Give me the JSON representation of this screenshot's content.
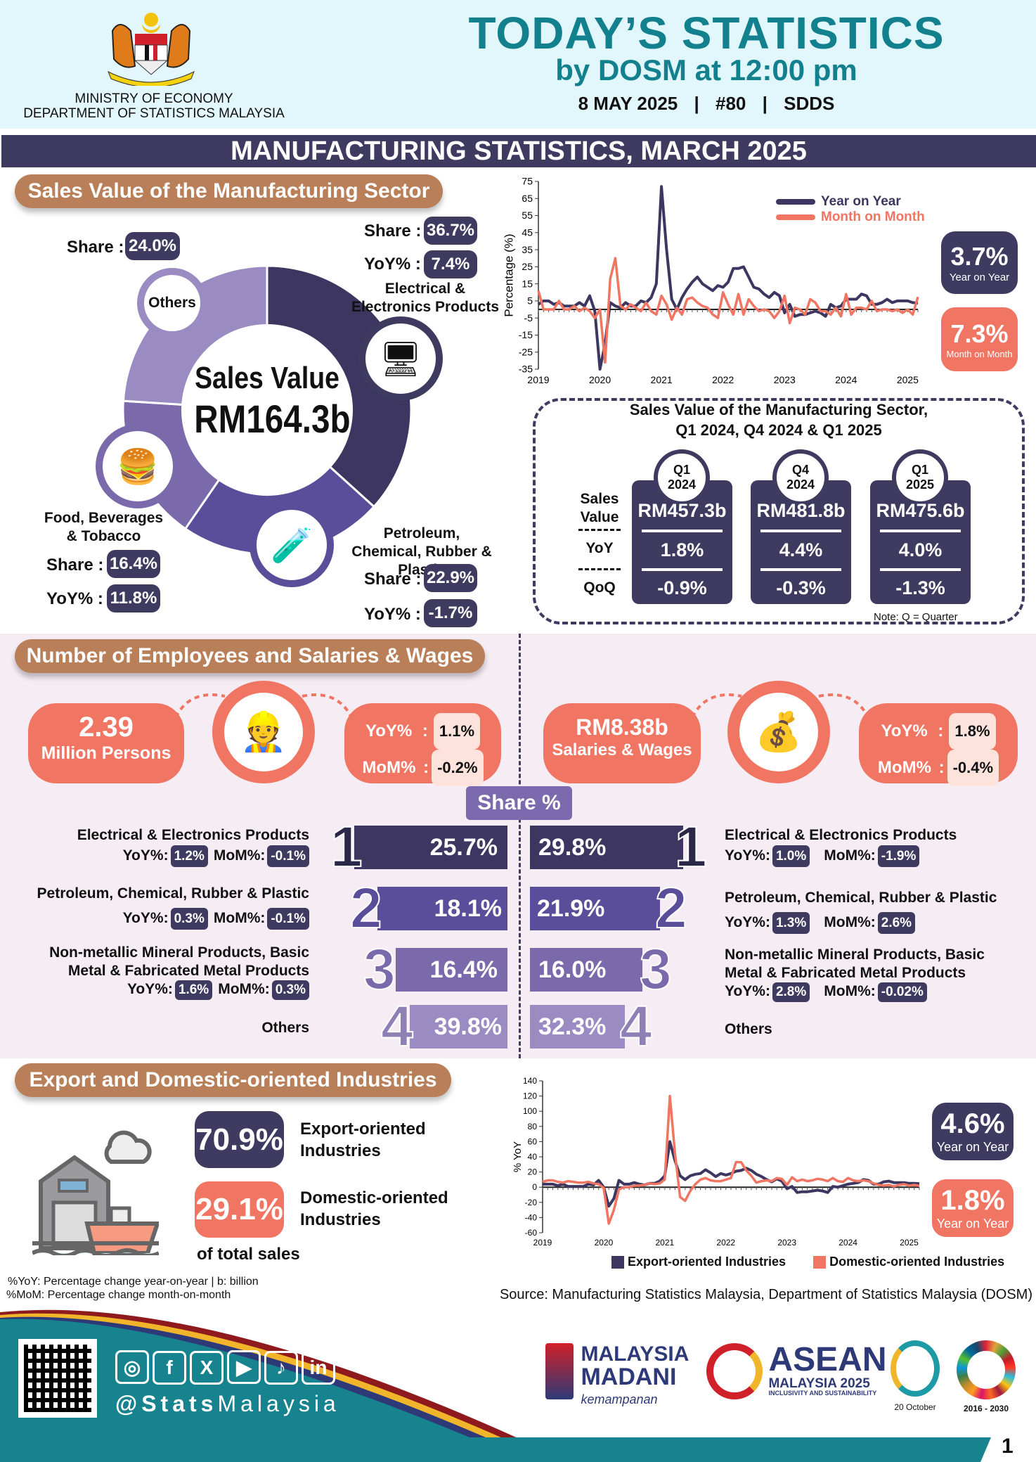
{
  "header": {
    "ministry": "MINISTRY OF ECONOMY",
    "department": "DEPARTMENT OF STATISTICS MALAYSIA",
    "title": "TODAY’S STATISTICS",
    "subtitle": "by DOSM at 12:00 pm",
    "date": "8 MAY 2025",
    "issue": "#80",
    "standard": "SDDS",
    "sep": "|"
  },
  "main_title": "MANUFACTURING STATISTICS, MARCH 2025",
  "sales": {
    "section_title": "Sales Value of the Manufacturing Sector",
    "center_line1": "Sales Value",
    "center_line2": "RM164.3b",
    "share_label": "Share :",
    "yoy_label": "YoY% :",
    "segments": [
      {
        "name": "Electrical & Electronics Products",
        "share": 36.7,
        "share_text": "36.7%",
        "yoy_text": "7.4%",
        "color": "#3d3660",
        "icon": "computer-icon"
      },
      {
        "name": "Petroleum, Chemical, Rubber & Plastic",
        "share": 22.9,
        "share_text": "22.9%",
        "yoy_text": "-1.7%",
        "color": "#5a4e9a",
        "icon": "chemical-icon"
      },
      {
        "name": "Food, Beverages & Tobacco",
        "share": 16.4,
        "share_text": "16.4%",
        "yoy_text": "11.8%",
        "color": "#7a6aab",
        "icon": "food-icon"
      },
      {
        "name": "Others",
        "share": 24.0,
        "share_text": "24.0%",
        "color": "#9a8cc2"
      }
    ]
  },
  "chart_data": [
    {
      "type": "line",
      "title": "",
      "ylabel": "Percentage (%)",
      "xlabel": "",
      "ylim": [
        -35,
        75
      ],
      "yticks": [
        75,
        65,
        55,
        45,
        35,
        25,
        15,
        5,
        -5,
        -15,
        -25,
        -35
      ],
      "xticks": [
        "2019",
        "2020",
        "2021",
        "2022",
        "2023",
        "2024",
        "2025"
      ],
      "x_start": "Jan 2019",
      "frequency": "monthly",
      "legend": "top-right",
      "series": [
        {
          "name": "Year on Year",
          "color": "#3d3660",
          "values": [
            3,
            5,
            5,
            3,
            4,
            2,
            2,
            2,
            4,
            2,
            8,
            -1,
            -35,
            -20,
            4,
            2,
            1,
            4,
            2,
            2,
            5,
            4,
            7,
            15,
            72,
            35,
            6,
            0,
            7,
            12,
            16,
            19,
            15,
            13,
            11,
            14,
            13,
            16,
            24,
            24,
            25,
            19,
            13,
            12,
            9,
            7,
            10,
            8,
            -2,
            3,
            -4,
            -3,
            -3,
            -2,
            -1,
            -2,
            -4,
            3,
            1,
            2,
            6,
            6,
            6,
            9,
            8,
            3,
            3,
            4,
            6,
            4,
            5,
            5,
            5,
            4,
            3.7
          ]
        },
        {
          "name": "Month on Month",
          "color": "#f07563",
          "values": [
            11,
            0,
            0,
            0,
            5,
            0,
            0,
            2,
            -1,
            1,
            -1,
            -5,
            0,
            -31,
            18,
            30,
            2,
            0,
            3,
            1,
            -1,
            4,
            -1,
            -3,
            8,
            3,
            -6,
            1,
            -3,
            6,
            7,
            4,
            2,
            1,
            -3,
            -5,
            10,
            3,
            -3,
            9,
            -3,
            6,
            2,
            -1,
            0,
            -1,
            -5,
            -1,
            8,
            -8,
            1,
            0,
            -3,
            6,
            4,
            -1,
            -1,
            -3,
            1,
            -4,
            9,
            -3,
            1,
            1,
            0,
            5,
            -1,
            0,
            0,
            -1,
            0,
            -2,
            0,
            -3,
            7.3
          ]
        }
      ]
    },
    {
      "type": "line",
      "title": "",
      "ylabel": "% YoY",
      "xlabel": "",
      "ylim": [
        -60,
        140
      ],
      "yticks": [
        140,
        120,
        100,
        80,
        60,
        40,
        20,
        0,
        -20,
        -40,
        -60
      ],
      "xticks": [
        "2019",
        "2020",
        "2021",
        "2022",
        "2023",
        "2024",
        "2025"
      ],
      "x_start": "Jan 2019",
      "frequency": "monthly",
      "legend": "bottom",
      "series": [
        {
          "name": "Export-oriented Industries",
          "color": "#3d3660",
          "values": [
            4,
            4,
            4,
            2,
            4,
            1,
            1,
            1,
            1,
            4,
            3,
            9,
            0,
            -25,
            -15,
            9,
            4,
            4,
            6,
            4,
            3,
            5,
            5,
            8,
            15,
            60,
            35,
            15,
            10,
            15,
            17,
            18,
            23,
            19,
            14,
            18,
            16,
            18,
            21,
            22,
            25,
            22,
            17,
            14,
            10,
            7,
            11,
            8,
            -2,
            1,
            -7,
            -6,
            -6,
            -5,
            -4,
            -5,
            -7,
            1,
            0,
            2,
            4,
            5,
            6,
            10,
            9,
            4,
            4,
            7,
            8,
            6,
            6,
            6,
            5,
            5,
            4.6
          ]
        },
        {
          "name": "Domestic-oriented Industries",
          "color": "#f07563",
          "values": [
            7,
            9,
            9,
            7,
            6,
            8,
            7,
            6,
            6,
            7,
            5,
            4,
            -1,
            -48,
            -30,
            -3,
            0,
            0,
            2,
            2,
            3,
            5,
            4,
            5,
            10,
            120,
            45,
            -13,
            -18,
            -5,
            4,
            10,
            12,
            9,
            8,
            8,
            10,
            12,
            33,
            33,
            22,
            15,
            6,
            8,
            9,
            8,
            12,
            11,
            3,
            13,
            8,
            10,
            8,
            9,
            11,
            10,
            8,
            12,
            8,
            7,
            12,
            9,
            8,
            9,
            8,
            5,
            3,
            2,
            3,
            1,
            3,
            4,
            2,
            3,
            1.8
          ]
        }
      ]
    }
  ],
  "sales_badges": {
    "yoy": {
      "value": "3.7%",
      "label": "Year on Year"
    },
    "mom": {
      "value": "7.3%",
      "label": "Month on Month"
    }
  },
  "quarters": {
    "title_line1": "Sales Value of the Manufacturing Sector,",
    "title_line2": "Q1 2024, Q4 2024 & Q1 2025",
    "row_labels": {
      "sales_1": "Sales",
      "sales_2": "Value",
      "yoy": "YoY",
      "qoq": "QoQ"
    },
    "note": "Note: Q = Quarter",
    "items": [
      {
        "q": "Q1",
        "year": "2024",
        "sales": "RM457.3b",
        "yoy": "1.8%",
        "qoq": "-0.9%"
      },
      {
        "q": "Q4",
        "year": "2024",
        "sales": "RM481.8b",
        "yoy": "4.4%",
        "qoq": "-0.3%"
      },
      {
        "q": "Q1",
        "year": "2025",
        "sales": "RM475.6b",
        "yoy": "4.0%",
        "qoq": "-1.3%"
      }
    ]
  },
  "employees": {
    "section_title": "Number of Employees and Salaries & Wages",
    "persons": {
      "value": "2.39",
      "label": "Million Persons",
      "yoy_label": "YoY%",
      "yoy": "1.1%",
      "mom_label": "MoM%",
      "mom": "-0.2%"
    },
    "salaries": {
      "value": "RM8.38b",
      "label": "Salaries & Wages",
      "yoy_label": "YoY%",
      "yoy": "1.8%",
      "mom_label": "MoM%",
      "mom": "-0.4%"
    },
    "colon": ":",
    "share_title": "Share %",
    "yoy_label": "YoY%:",
    "mom_label": "MoM%:",
    "left": [
      {
        "rank": "1",
        "name_1": "Electrical & Electronics Products",
        "name_2": "",
        "share": "25.7%",
        "yoy": "1.2%",
        "mom": "-0.1%"
      },
      {
        "rank": "2",
        "name_1": "Petroleum, Chemical, Rubber & Plastic",
        "name_2": "",
        "share": "18.1%",
        "yoy": "0.3%",
        "mom": "-0.1%"
      },
      {
        "rank": "3",
        "name_1": "Non-metallic Mineral Products, Basic",
        "name_2": "Metal & Fabricated Metal Products",
        "share": "16.4%",
        "yoy": "1.6%",
        "mom": "0.3%"
      },
      {
        "rank": "4",
        "name_1": "Others",
        "share": "39.8%"
      }
    ],
    "right": [
      {
        "rank": "1",
        "name_1": "Electrical & Electronics Products",
        "name_2": "",
        "share": "29.8%",
        "yoy": "1.0%",
        "mom": "-1.9%"
      },
      {
        "rank": "2",
        "name_1": "Petroleum, Chemical, Rubber & Plastic",
        "name_2": "",
        "share": "21.9%",
        "yoy": "1.3%",
        "mom": "2.6%"
      },
      {
        "rank": "3",
        "name_1": "Non-metallic Mineral Products, Basic",
        "name_2": "Metal & Fabricated Metal Products",
        "share": "16.0%",
        "yoy": "2.8%",
        "mom": "-0.02%"
      },
      {
        "rank": "4",
        "name_1": "Others",
        "share": "32.3%"
      }
    ]
  },
  "export": {
    "section_title": "Export and Domestic-oriented Industries",
    "export_share": "70.9%",
    "export_label_1": "Export-oriented",
    "export_label_2": "Industries",
    "domestic_share": "29.1%",
    "domestic_label_1": "Domestic-oriented",
    "domestic_label_2": "Industries",
    "suffix": "of total sales",
    "badge_export": {
      "value": "4.6%",
      "label": "Year on Year"
    },
    "badge_domestic": {
      "value": "1.8%",
      "label": "Year on Year"
    }
  },
  "notes": {
    "line1": "%YoY: Percentage change year-on-year | b: billion",
    "line2": "%MoM: Percentage change month-on-month",
    "source": "Source: Manufacturing Statistics Malaysia, Department of Statistics Malaysia (DOSM)"
  },
  "footer": {
    "handle_1": "@Stats",
    "handle_2": "Malaysia",
    "logos": {
      "madani_1": "MALAYSIA",
      "madani_2": "MADANI",
      "madani_3": "kemampanan",
      "asean_1": "ASEAN",
      "asean_2": "MALAYSIA 2025",
      "asean_3": "INCLUSIVITY AND SUSTAINABILITY",
      "statsday": "20 October",
      "sdg": "2016 - 2030"
    },
    "page": "1"
  },
  "colors": {
    "navy": "#3e3a60",
    "salmon": "#f07563",
    "brown": "#b87f58",
    "teal": "#16838f",
    "pink_bg": "#f5ecf4",
    "purple": "#7b6aad"
  }
}
